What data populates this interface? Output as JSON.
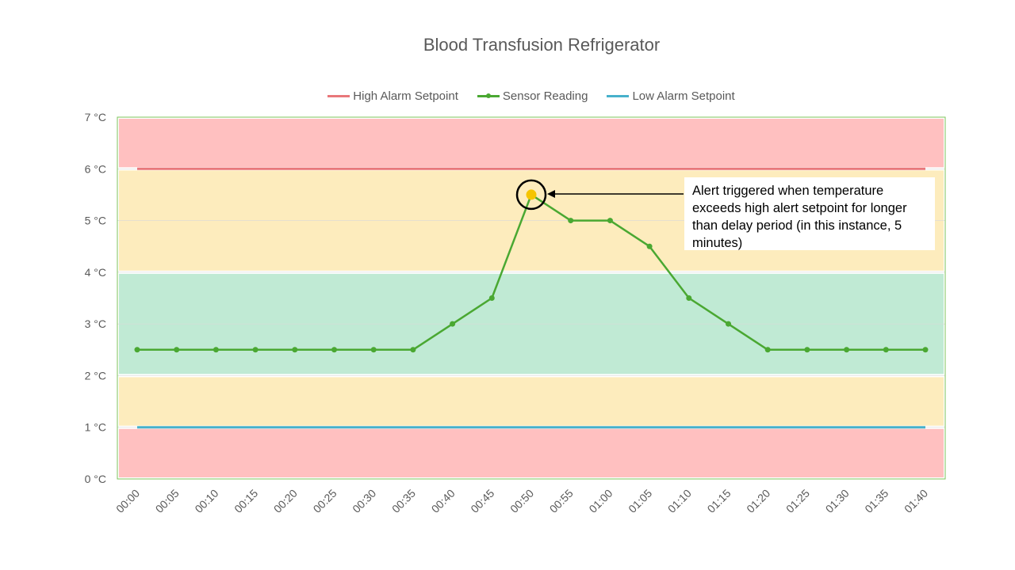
{
  "chart_data": {
    "type": "line",
    "title": "Blood Transfusion Refrigerator",
    "categories": [
      "00:00",
      "00:05",
      "00:10",
      "00:15",
      "00:20",
      "00:25",
      "00:30",
      "00:35",
      "00:40",
      "00:45",
      "00:50",
      "00:55",
      "01:00",
      "01:05",
      "01:10",
      "01:15",
      "01:20",
      "01:25",
      "01:30",
      "01:35",
      "01:40"
    ],
    "series": [
      {
        "name": "High Alarm Setpoint",
        "color": "#e8777a",
        "values": [
          6,
          6,
          6,
          6,
          6,
          6,
          6,
          6,
          6,
          6,
          6,
          6,
          6,
          6,
          6,
          6,
          6,
          6,
          6,
          6,
          6
        ]
      },
      {
        "name": "Sensor Reading",
        "color": "#4aa832",
        "values": [
          2.5,
          2.5,
          2.5,
          2.5,
          2.5,
          2.5,
          2.5,
          2.5,
          3,
          3.5,
          5.5,
          5,
          5,
          4.5,
          3.5,
          3,
          2.5,
          2.5,
          2.5,
          2.5,
          2.5
        ]
      },
      {
        "name": "Low Alarm Setpoint",
        "color": "#47b1cb",
        "values": [
          1,
          1,
          1,
          1,
          1,
          1,
          1,
          1,
          1,
          1,
          1,
          1,
          1,
          1,
          1,
          1,
          1,
          1,
          1,
          1,
          1
        ]
      }
    ],
    "y_tick_labels": [
      "0 °C",
      "1 °C",
      "2 °C",
      "3 °C",
      "4 °C",
      "5 °C",
      "6 °C",
      "7 °C"
    ],
    "ylim": [
      0,
      7
    ],
    "grid": true,
    "legend_position": "top",
    "bands": [
      {
        "zone": "alarm-low",
        "from": 0,
        "to": 1,
        "color": "#ffc0c0"
      },
      {
        "zone": "warning-low",
        "from": 1,
        "to": 2,
        "color": "#fdecbd"
      },
      {
        "zone": "normal",
        "from": 2,
        "to": 4,
        "color": "#c0ead4"
      },
      {
        "zone": "warning-high",
        "from": 4,
        "to": 6,
        "color": "#fdecbd"
      },
      {
        "zone": "alarm-high",
        "from": 6,
        "to": 7,
        "color": "#ffc0c0"
      }
    ],
    "highlight": {
      "category": "00:50",
      "value": 5.5,
      "color": "#f5c400"
    },
    "annotation": "Alert triggered when temperature exceeds high alert setpoint for longer than delay period (in this instance, 5 minutes)"
  }
}
